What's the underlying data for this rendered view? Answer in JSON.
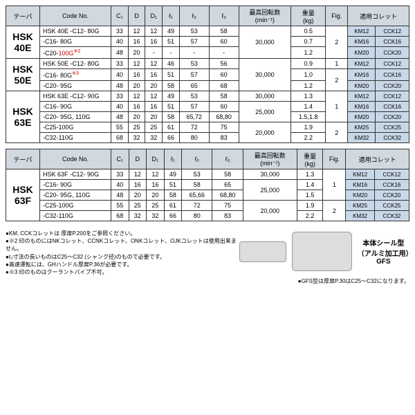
{
  "hdr": {
    "taper": "テーパ",
    "code": "Code No.",
    "c1": "C₁",
    "d": "D",
    "d1": "D₁",
    "l1": "ℓ₁",
    "l2": "ℓ₂",
    "l3": "ℓ₃",
    "rpm": "最高回転数",
    "rpmUnit": "(min⁻¹)",
    "wt": "重量",
    "wtUnit": "(kg)",
    "fig": "Fig.",
    "collet": "適用コレット"
  },
  "t1": {
    "tapers": [
      "HSK 40E",
      "HSK 50E",
      "HSK 63E"
    ],
    "rows": [
      {
        "code": "HSK 40E -C12- 80G",
        "c1": "33",
        "d": "12",
        "d1": "12",
        "l1": "49",
        "l2": "53",
        "l3": "58",
        "wt": "0.5",
        "col": [
          "KM12",
          "CCK12"
        ]
      },
      {
        "code": "-C16- 80G",
        "c1": "40",
        "d": "16",
        "d1": "16",
        "l1": "51",
        "l2": "57",
        "l3": "60",
        "wt": "0.7",
        "col": [
          "KM16",
          "CCK16"
        ]
      },
      {
        "code": "-C20-100G",
        "sup": "※2",
        "red": true,
        "c1": "48",
        "d": "20",
        "d1": "-",
        "l1": "-",
        "l2": "-",
        "l3": "-",
        "wt": "1.2",
        "col": [
          "KM20",
          "CCK20"
        ]
      },
      {
        "code": "HSK 50E -C12- 80G",
        "c1": "33",
        "d": "12",
        "d1": "12",
        "l1": "46",
        "l2": "53",
        "l3": "56",
        "wt": "0.9",
        "col": [
          "KM12",
          "CCK12"
        ]
      },
      {
        "code": "-C16- 80G",
        "sup": "※3",
        "c1": "40",
        "d": "16",
        "d1": "16",
        "l1": "51",
        "l2": "57",
        "l3": "60",
        "wt": "1.0",
        "col": [
          "KM16",
          "CCK16"
        ]
      },
      {
        "code": "-C20- 95G",
        "c1": "48",
        "d": "20",
        "d1": "20",
        "l1": "58",
        "l2": "65",
        "l3": "68",
        "wt": "1.2",
        "col": [
          "KM20",
          "CCK20"
        ]
      },
      {
        "code": "HSK 63E -C12- 90G",
        "c1": "33",
        "d": "12",
        "d1": "12",
        "l1": "49",
        "l2": "53",
        "l3": "58",
        "wt": "1.3",
        "col": [
          "KM12",
          "CCK12"
        ]
      },
      {
        "code": "-C16- 90G",
        "c1": "40",
        "d": "16",
        "d1": "16",
        "l1": "51",
        "l2": "57",
        "l3": "60",
        "wt": "1.4",
        "col": [
          "KM16",
          "CCK16"
        ]
      },
      {
        "code": "-C20- 95G, 110G",
        "c1": "48",
        "d": "20",
        "d1": "20",
        "l1": "58",
        "l2": "65,72",
        "l3": "68,80",
        "wt": "1.5,1.8",
        "col": [
          "KM20",
          "CCK20"
        ]
      },
      {
        "code": "-C25-100G",
        "c1": "55",
        "d": "25",
        "d1": "25",
        "l1": "61",
        "l2": "72",
        "l3": "75",
        "wt": "1.9",
        "col": [
          "KM25",
          "CCK25"
        ]
      },
      {
        "code": "-C32-110G",
        "c1": "68",
        "d": "32",
        "d1": "32",
        "l1": "66",
        "l2": "80",
        "l3": "83",
        "wt": "2.2",
        "col": [
          "KM32",
          "CCK32"
        ]
      }
    ],
    "rpms": [
      "30,000",
      "30,000",
      "30,000",
      "25,000",
      "20,000"
    ],
    "figs": [
      "2",
      "1",
      "2",
      "1",
      "2"
    ]
  },
  "t2": {
    "taper": "HSK 63F",
    "rows": [
      {
        "code": "HSK 63F -C12- 90G",
        "c1": "33",
        "d": "12",
        "d1": "12",
        "l1": "49",
        "l2": "53",
        "l3": "58",
        "wt": "1.3",
        "col": [
          "KM12",
          "CCK12"
        ]
      },
      {
        "code": "-C16- 90G",
        "c1": "40",
        "d": "16",
        "d1": "16",
        "l1": "51",
        "l2": "58",
        "l3": "65",
        "wt": "1.4",
        "col": [
          "KM16",
          "CCK16"
        ]
      },
      {
        "code": "-C20- 95G, 110G",
        "c1": "48",
        "d": "20",
        "d1": "20",
        "l1": "58",
        "l2": "65,66",
        "l3": "68,80",
        "wt": "1.5",
        "col": [
          "KM20",
          "CCK20"
        ]
      },
      {
        "code": "-C25-100G",
        "c1": "55",
        "d": "25",
        "d1": "25",
        "l1": "61",
        "l2": "72",
        "l3": "75",
        "wt": "1.9",
        "col": [
          "KM25",
          "CCK25"
        ]
      },
      {
        "code": "-C32-110G",
        "c1": "68",
        "d": "32",
        "d1": "32",
        "l1": "66",
        "l2": "80",
        "l3": "83",
        "wt": "2.2",
        "col": [
          "KM32",
          "CCK32"
        ]
      }
    ],
    "rpms": [
      "30,000",
      "25,000",
      "20,000"
    ],
    "figs": [
      "1",
      "2"
    ]
  },
  "notes": [
    "●KM, CCKコレットは 厚扉P.200をご参照ください。",
    "●※2 印のものにはNKコレット、CCNKコレット、ONKコレット、OJKコレットは使用出来ません。",
    "●ℓ₃寸法の長いものはC25～C32 (シャンク径)のもので必要です。",
    "●高速運転には、GHハンドル厚扉P.36が必要です。",
    "●※3 印のものはクーラントパイプ不可。"
  ],
  "bottomNote": "●GFS型は厚扉P.30はC25～C32になります。",
  "label": {
    "l1": "本体シール型",
    "l2": "（アルミ加工用）",
    "l3": "GFS"
  }
}
